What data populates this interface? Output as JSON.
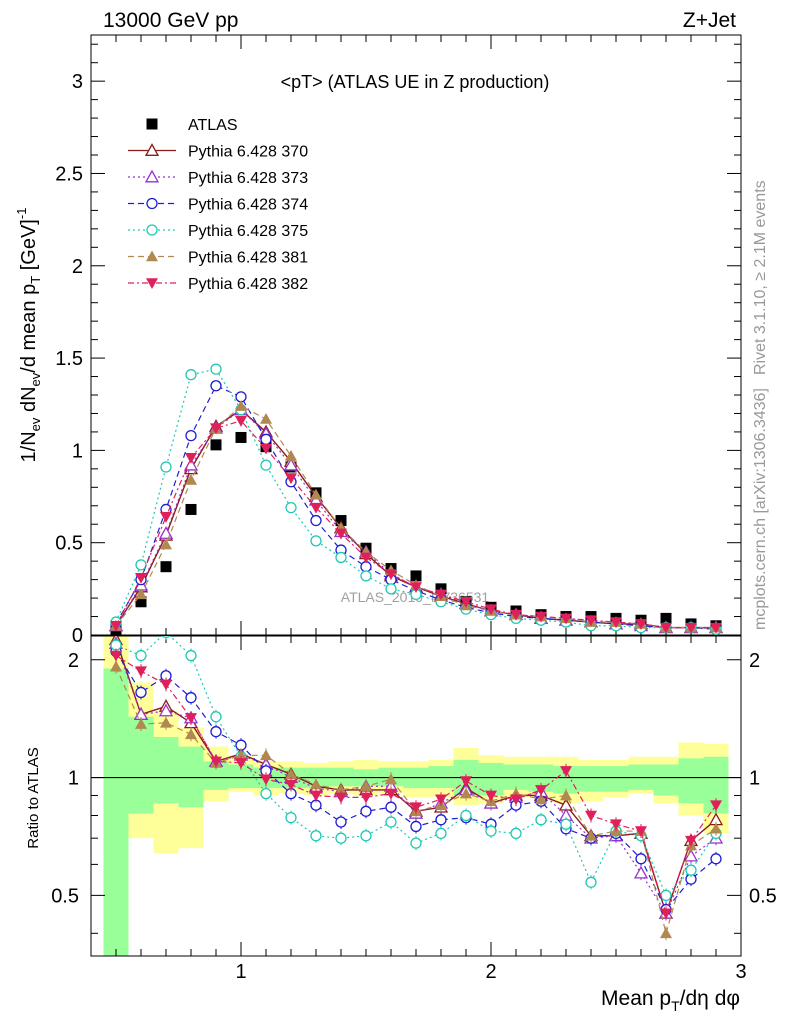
{
  "header": {
    "left": "13000 GeV pp",
    "right": "Z+Jet"
  },
  "side_labels": {
    "rivet": "Rivet 3.1.10, ≥ 2.1M events",
    "mcplots": "mcplots.cern.ch [arXiv:1306.3436]"
  },
  "watermark": "ATLAS_2019_I1736531",
  "colors": {
    "ATLAS": "#000000",
    "p370": "#8b1a1a",
    "p373": "#9932cc",
    "p374": "#1e1ed2",
    "p375": "#20c8b4",
    "p381": "#b08850",
    "p382": "#e0205a",
    "band_yellow": "#ffff99",
    "band_green": "#99ff99"
  },
  "chart_data": [
    {
      "type": "scatter",
      "title": "<pT> (ATLAS UE in Z production)",
      "xlabel": "",
      "ylabel": "1/N_ev dN_ev/d mean p_T [GeV]^-1",
      "xlim": [
        0.4,
        3.0
      ],
      "ylim": [
        0,
        3.25
      ],
      "yticks": [
        0,
        0.5,
        1,
        1.5,
        2,
        2.5,
        3
      ],
      "yticklabels": [
        "0",
        "0.5",
        "1",
        "1.5",
        "2",
        "2.5",
        "3"
      ],
      "legend_position": "top-left",
      "x": [
        0.5,
        0.6,
        0.7,
        0.8,
        0.9,
        1.0,
        1.1,
        1.2,
        1.3,
        1.4,
        1.5,
        1.6,
        1.7,
        1.8,
        1.9,
        2.0,
        2.1,
        2.2,
        2.3,
        2.4,
        2.5,
        2.6,
        2.7,
        2.8,
        2.9
      ],
      "series": [
        {
          "name": "ATLAS",
          "key": "ATLAS",
          "marker": "square",
          "line": "none",
          "values": [
            0.02,
            0.18,
            0.37,
            0.68,
            1.03,
            1.07,
            1.02,
            0.91,
            0.77,
            0.62,
            0.47,
            0.36,
            0.32,
            0.25,
            0.18,
            0.15,
            0.13,
            0.11,
            0.1,
            0.1,
            0.09,
            0.08,
            0.09,
            0.06,
            0.05
          ]
        },
        {
          "name": "Pythia 6.428 370",
          "key": "p370",
          "marker": "tri-open",
          "line": "solid",
          "values": [
            0.05,
            0.26,
            0.54,
            0.9,
            1.13,
            1.22,
            1.1,
            0.94,
            0.75,
            0.58,
            0.44,
            0.32,
            0.26,
            0.21,
            0.17,
            0.13,
            0.11,
            0.09,
            0.08,
            0.07,
            0.06,
            0.06,
            0.04,
            0.04,
            0.04
          ]
        },
        {
          "name": "Pythia 6.428 373",
          "key": "p373",
          "marker": "tri-open",
          "line": "dotted",
          "values": [
            0.05,
            0.27,
            0.55,
            0.92,
            1.12,
            1.22,
            1.09,
            0.92,
            0.73,
            0.56,
            0.45,
            0.33,
            0.26,
            0.22,
            0.17,
            0.13,
            0.11,
            0.09,
            0.08,
            0.07,
            0.06,
            0.05,
            0.04,
            0.04,
            0.04
          ]
        },
        {
          "name": "Pythia 6.428 374",
          "key": "p374",
          "marker": "circle-open",
          "line": "dashed",
          "values": [
            0.06,
            0.3,
            0.68,
            1.08,
            1.35,
            1.29,
            1.06,
            0.83,
            0.62,
            0.46,
            0.37,
            0.3,
            0.24,
            0.19,
            0.15,
            0.12,
            0.1,
            0.09,
            0.08,
            0.07,
            0.06,
            0.05,
            0.04,
            0.04,
            0.03
          ]
        },
        {
          "name": "Pythia 6.428 375",
          "key": "p375",
          "marker": "circle-open",
          "line": "dotted",
          "values": [
            0.07,
            0.38,
            0.91,
            1.41,
            1.44,
            1.22,
            0.92,
            0.69,
            0.51,
            0.42,
            0.32,
            0.25,
            0.22,
            0.18,
            0.14,
            0.11,
            0.09,
            0.08,
            0.07,
            0.05,
            0.05,
            0.04,
            0.04,
            0.04,
            0.03
          ]
        },
        {
          "name": "Pythia 6.428 381",
          "key": "p381",
          "marker": "tri-filled",
          "line": "dashed",
          "values": [
            0.05,
            0.22,
            0.49,
            0.84,
            1.12,
            1.24,
            1.17,
            0.97,
            0.76,
            0.58,
            0.45,
            0.35,
            0.27,
            0.21,
            0.16,
            0.13,
            0.11,
            0.1,
            0.09,
            0.07,
            0.07,
            0.06,
            0.04,
            0.04,
            0.04
          ]
        },
        {
          "name": "Pythia 6.428 382",
          "key": "p382",
          "marker": "tri-down-filled",
          "line": "dashdot",
          "values": [
            0.05,
            0.31,
            0.64,
            0.96,
            1.12,
            1.16,
            1.01,
            0.85,
            0.69,
            0.55,
            0.42,
            0.33,
            0.26,
            0.22,
            0.18,
            0.14,
            0.11,
            0.1,
            0.09,
            0.08,
            0.07,
            0.06,
            0.04,
            0.04,
            0.04
          ]
        }
      ]
    },
    {
      "type": "scatter",
      "title": "",
      "xlabel": "Mean p_T/dη dφ",
      "ylabel": "Ratio to ATLAS",
      "xlim": [
        0.4,
        3.0
      ],
      "ylim": [
        0.35,
        2.3
      ],
      "xticks": [
        1,
        2,
        3
      ],
      "xticklabels": [
        "1",
        "2",
        "3"
      ],
      "yticks": [
        0.5,
        1,
        2
      ],
      "yticklabels": [
        "0.5",
        "1",
        "2"
      ],
      "reference_line": 1,
      "band_edges": [
        0.45,
        0.55,
        0.65,
        0.75,
        0.85,
        0.95,
        1.05,
        1.15,
        1.25,
        1.35,
        1.45,
        1.55,
        1.65,
        1.75,
        1.85,
        1.95,
        2.05,
        2.15,
        2.25,
        2.35,
        2.45,
        2.55,
        2.65,
        2.75,
        2.85,
        2.95
      ],
      "band_yellow": [
        [
          0.28,
          2.3
        ],
        [
          0.7,
          1.75
        ],
        [
          0.64,
          1.48
        ],
        [
          0.66,
          1.34
        ],
        [
          0.87,
          1.2
        ],
        [
          0.92,
          1.14
        ],
        [
          0.9,
          1.1
        ],
        [
          0.91,
          1.1
        ],
        [
          0.9,
          1.09
        ],
        [
          0.91,
          1.1
        ],
        [
          0.9,
          1.11
        ],
        [
          0.91,
          1.1
        ],
        [
          0.89,
          1.1
        ],
        [
          0.89,
          1.11
        ],
        [
          0.85,
          1.19
        ],
        [
          0.86,
          1.14
        ],
        [
          0.89,
          1.13
        ],
        [
          0.89,
          1.13
        ],
        [
          0.86,
          1.13
        ],
        [
          0.87,
          1.11
        ],
        [
          0.89,
          1.11
        ],
        [
          0.91,
          1.13
        ],
        [
          0.86,
          1.13
        ],
        [
          0.8,
          1.23
        ],
        [
          0.72,
          1.22
        ]
      ],
      "band_green": [
        [
          0.3,
          1.9
        ],
        [
          0.81,
          1.43
        ],
        [
          0.86,
          1.27
        ],
        [
          0.84,
          1.2
        ],
        [
          0.93,
          1.1
        ],
        [
          0.94,
          1.08
        ],
        [
          0.94,
          1.06
        ],
        [
          0.94,
          1.06
        ],
        [
          0.94,
          1.06
        ],
        [
          0.95,
          1.06
        ],
        [
          0.95,
          1.05
        ],
        [
          0.95,
          1.06
        ],
        [
          0.94,
          1.06
        ],
        [
          0.94,
          1.07
        ],
        [
          0.9,
          1.11
        ],
        [
          0.9,
          1.09
        ],
        [
          0.93,
          1.08
        ],
        [
          0.92,
          1.08
        ],
        [
          0.91,
          1.07
        ],
        [
          0.92,
          1.07
        ],
        [
          0.92,
          1.07
        ],
        [
          0.93,
          1.08
        ],
        [
          0.9,
          1.08
        ],
        [
          0.86,
          1.12
        ],
        [
          0.81,
          1.13
        ]
      ],
      "x": [
        0.5,
        0.6,
        0.7,
        0.8,
        0.9,
        1.0,
        1.1,
        1.2,
        1.3,
        1.4,
        1.5,
        1.6,
        1.7,
        1.8,
        1.9,
        2.0,
        2.1,
        2.2,
        2.3,
        2.4,
        2.5,
        2.6,
        2.7,
        2.8,
        2.9
      ],
      "series": [
        {
          "name": "Pythia 6.428 370",
          "key": "p370",
          "marker": "tri-open",
          "line": "solid",
          "values": [
            2.25,
            1.45,
            1.52,
            1.38,
            1.1,
            1.15,
            1.08,
            1.02,
            0.95,
            0.93,
            0.93,
            0.93,
            0.82,
            0.84,
            0.94,
            0.86,
            0.9,
            0.9,
            0.85,
            0.71,
            0.71,
            0.72,
            0.45,
            0.69,
            0.78
          ]
        },
        {
          "name": "Pythia 6.428 373",
          "key": "p373",
          "marker": "tri-open",
          "line": "dotted",
          "values": [
            2.2,
            1.45,
            1.48,
            1.42,
            1.1,
            1.14,
            1.08,
            1.0,
            0.94,
            0.92,
            0.95,
            0.95,
            0.81,
            0.86,
            0.93,
            0.86,
            0.89,
            0.92,
            0.8,
            0.7,
            0.71,
            0.57,
            0.45,
            0.63,
            0.7
          ]
        },
        {
          "name": "Pythia 6.428 374",
          "key": "p374",
          "marker": "circle-open",
          "line": "dashed",
          "values": [
            2.1,
            1.65,
            1.82,
            1.6,
            1.31,
            1.21,
            1.04,
            0.91,
            0.85,
            0.77,
            0.82,
            0.84,
            0.75,
            0.78,
            0.79,
            0.76,
            0.85,
            0.87,
            0.74,
            0.7,
            0.72,
            0.62,
            0.46,
            0.55,
            0.62
          ]
        },
        {
          "name": "Pythia 6.428 375",
          "key": "p375",
          "marker": "circle-open",
          "line": "dotted",
          "values": [
            2.18,
            2.05,
            2.35,
            2.05,
            1.43,
            1.13,
            0.91,
            0.79,
            0.71,
            0.7,
            0.71,
            0.77,
            0.68,
            0.72,
            0.8,
            0.73,
            0.72,
            0.78,
            0.76,
            0.54,
            0.73,
            0.71,
            0.5,
            0.58,
            0.72
          ]
        },
        {
          "name": "Pythia 6.428 381",
          "key": "p381",
          "marker": "tri-filled",
          "line": "dashed",
          "values": [
            1.92,
            1.37,
            1.38,
            1.29,
            1.09,
            1.14,
            1.14,
            1.02,
            0.96,
            0.93,
            0.95,
            0.99,
            0.82,
            0.85,
            0.91,
            0.87,
            0.91,
            0.88,
            0.9,
            0.71,
            0.73,
            0.73,
            0.4,
            0.67,
            0.74
          ]
        },
        {
          "name": "Pythia 6.428 382",
          "key": "p382",
          "marker": "tri-down-filled",
          "line": "dashdot",
          "values": [
            2.05,
            1.87,
            1.73,
            1.42,
            1.1,
            1.09,
            0.99,
            0.96,
            0.9,
            0.89,
            0.89,
            0.91,
            0.84,
            0.88,
            0.98,
            0.9,
            0.88,
            0.93,
            1.04,
            0.8,
            0.76,
            0.73,
            0.45,
            0.69,
            0.85
          ]
        }
      ]
    }
  ]
}
